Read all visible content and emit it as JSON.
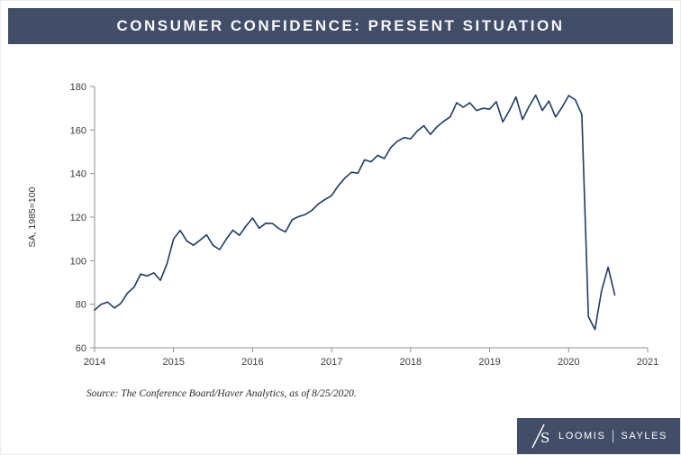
{
  "header": {
    "title": "CONSUMER CONFIDENCE: PRESENT SITUATION"
  },
  "chart_data": {
    "type": "line",
    "title": "CONSUMER CONFIDENCE: PRESENT SITUATION",
    "xlabel": "",
    "ylabel": "SA, 1985=100",
    "xlim": [
      2014,
      2021
    ],
    "ylim": [
      60,
      180
    ],
    "x_ticks": [
      2014,
      2015,
      2016,
      2017,
      2018,
      2019,
      2020,
      2021
    ],
    "y_ticks": [
      60,
      80,
      100,
      120,
      140,
      160,
      180
    ],
    "grid": false,
    "legend_position": "none",
    "line_color": "#203a64",
    "axis_color": "#8f8f8f",
    "series": [
      {
        "name": "Consumer Confidence — Present Situation (SA, 1985=100)",
        "frequency": "monthly",
        "start": "2014-01",
        "end": "2020-08",
        "values": [
          77.3,
          80.0,
          81.0,
          78.3,
          80.4,
          85.1,
          87.9,
          93.9,
          93.0,
          94.4,
          91.0,
          98.6,
          110.0,
          113.9,
          109.1,
          107.1,
          109.4,
          111.9,
          107.0,
          105.1,
          109.9,
          114.0,
          111.7,
          115.9,
          119.6,
          114.9,
          117.2,
          117.1,
          114.7,
          113.2,
          118.8,
          120.3,
          121.2,
          123.1,
          126.1,
          128.1,
          129.9,
          134.4,
          137.9,
          140.6,
          140.2,
          146.3,
          145.4,
          148.4,
          146.9,
          152.0,
          154.9,
          156.5,
          156.0,
          159.5,
          162.0,
          158.0,
          161.5,
          164.0,
          166.0,
          172.5,
          170.5,
          172.5,
          169.0,
          170.0,
          169.6,
          173.0,
          163.7,
          169.0,
          175.2,
          164.8,
          170.9,
          176.0,
          169.0,
          173.3,
          166.0,
          170.5,
          175.8,
          173.9,
          167.2,
          74.3,
          68.4,
          86.2,
          97.0,
          84.2
        ]
      }
    ]
  },
  "source": {
    "text": "Source: The Conference Board/Haver Analytics, as of 8/25/2020."
  },
  "footer": {
    "logo": "loomis-sayles-ls-monogram",
    "brand_left": "LOOMIS",
    "brand_right": "SAYLES"
  }
}
